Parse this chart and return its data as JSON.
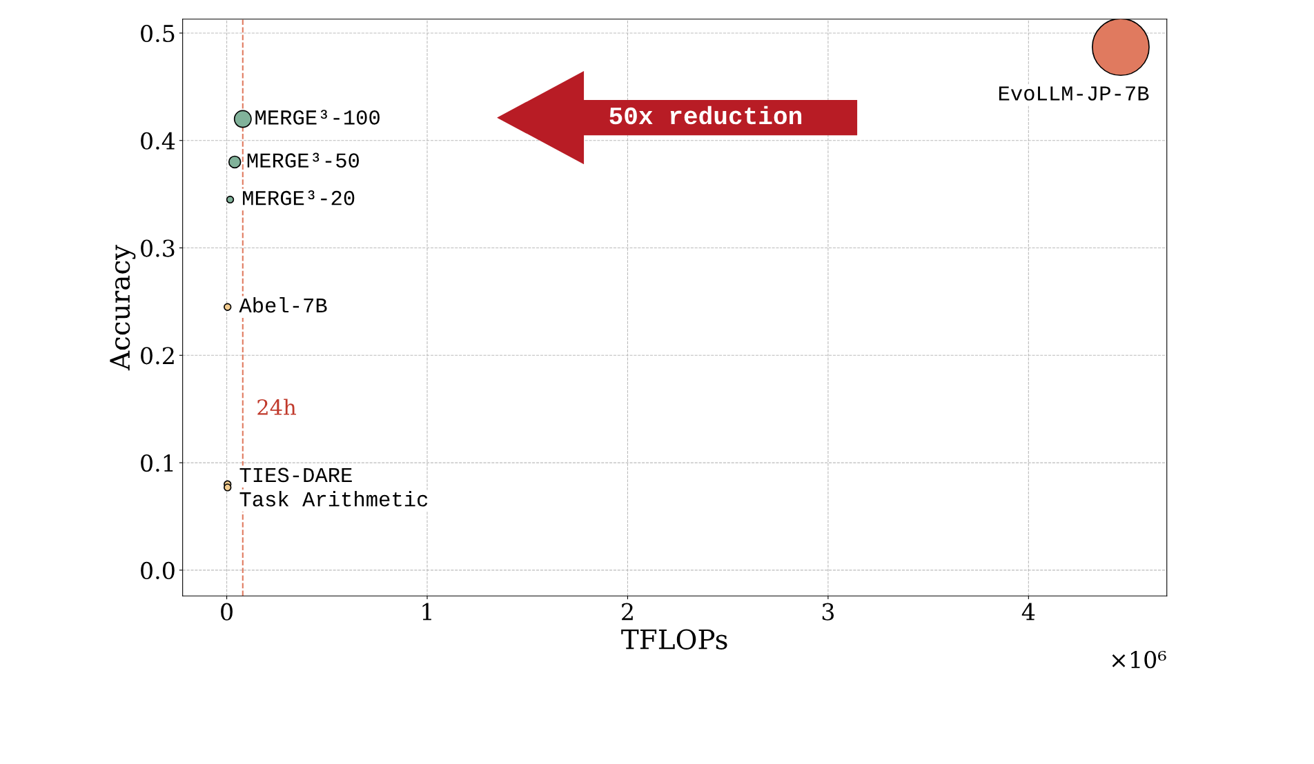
{
  "chart_data": {
    "type": "scatter",
    "xlabel": "TFLOPs",
    "ylabel": "Accuracy",
    "series": [
      {
        "name": "EvoLLM-JP-7B",
        "color": "#e07a5f",
        "x": [
          4.46
        ],
        "values": [
          0.487
        ],
        "sizes": [
          1
        ]
      },
      {
        "name": "MERGE³-100",
        "color": "#81b29a",
        "x": [
          0.08
        ],
        "values": [
          0.42
        ],
        "sizes": [
          0.087
        ]
      },
      {
        "name": "MERGE³-50",
        "color": "#81b29a",
        "x": [
          0.04
        ],
        "values": [
          0.38
        ],
        "sizes": [
          0.042
        ]
      },
      {
        "name": "MERGE³-20",
        "color": "#81b29a",
        "x": [
          0.017
        ],
        "values": [
          0.345
        ],
        "sizes": [
          0.014
        ]
      },
      {
        "name": "Abel-7B",
        "color": "#f2cc8f",
        "x": [
          0.004
        ],
        "values": [
          0.245
        ],
        "sizes": [
          0.014
        ]
      },
      {
        "name": "TIES-DARE",
        "color": "#f2cc8f",
        "x": [
          0.004
        ],
        "values": [
          0.08
        ],
        "sizes": [
          0.014
        ]
      },
      {
        "name": "Task Arithmetic",
        "color": "#f2cc8f",
        "x": [
          0.004
        ],
        "values": [
          0.077
        ],
        "sizes": [
          0.014
        ]
      }
    ],
    "ref_lines": [
      {
        "axis": "x",
        "value": 0.08,
        "label": "24h",
        "color": "#e07a5f",
        "line_style": "dashed"
      }
    ],
    "annotations": [
      "50x reduction",
      "×10⁶"
    ],
    "xlim": [
      -0.22,
      4.69
    ],
    "xticks": [
      0,
      1,
      2,
      3,
      4
    ],
    "ylim": [
      -0.024,
      0.513
    ],
    "yticks": [
      {
        "value": 0,
        "label": "0.0"
      },
      {
        "value": 0.1,
        "label": "0.1"
      },
      {
        "value": 0.2,
        "label": "0.2"
      },
      {
        "value": 0.3,
        "label": "0.3"
      },
      {
        "value": 0.4,
        "label": "0.4"
      },
      {
        "value": 0.5,
        "label": "0.5"
      }
    ],
    "grid": true,
    "legend": false,
    "marker": "circle"
  }
}
